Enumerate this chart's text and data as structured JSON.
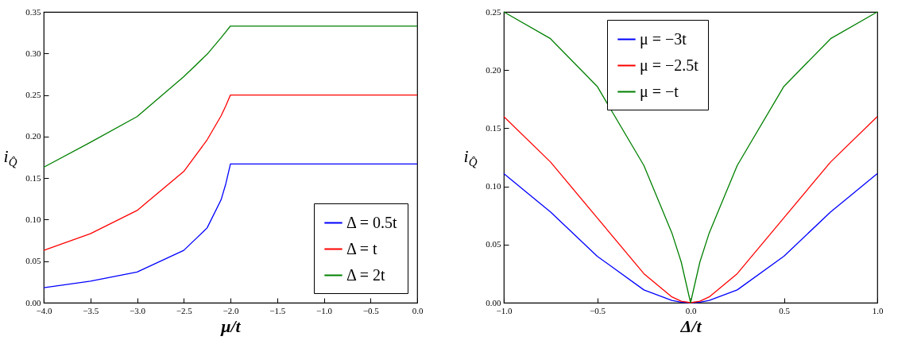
{
  "chart_data": [
    {
      "type": "line",
      "xlabel": "μ/t",
      "ylabel": "i$_{Q̂}$",
      "xlim": [
        -4,
        0
      ],
      "ylim": [
        0,
        0.35
      ],
      "xticks": [
        {
          "value": -4,
          "label": "−4.0"
        },
        {
          "value": -3.5,
          "label": "−3.5"
        },
        {
          "value": -3,
          "label": "−3.0"
        },
        {
          "value": -2.5,
          "label": "−2.5"
        },
        {
          "value": -2,
          "label": "−2.0"
        },
        {
          "value": -1.5,
          "label": "−1.5"
        },
        {
          "value": -1,
          "label": "−1.0"
        },
        {
          "value": -0.5,
          "label": "−0.5"
        },
        {
          "value": 0,
          "label": "0.0"
        }
      ],
      "yticks": [
        {
          "value": 0,
          "label": "0.00"
        },
        {
          "value": 0.05,
          "label": "0.05"
        },
        {
          "value": 0.1,
          "label": "0.10"
        },
        {
          "value": 0.15,
          "label": "0.15"
        },
        {
          "value": 0.2,
          "label": "0.20"
        },
        {
          "value": 0.25,
          "label": "0.25"
        },
        {
          "value": 0.3,
          "label": "0.30"
        },
        {
          "value": 0.35,
          "label": "0.35"
        }
      ],
      "x": [
        -4,
        -3.5,
        -3,
        -2.5,
        -2.25,
        -2.1,
        -2.05,
        -2,
        -1,
        0
      ],
      "series": [
        {
          "name": "Δ = 0.5t",
          "color": "#0000ff",
          "values": [
            0.018,
            0.026,
            0.037,
            0.063,
            0.09,
            0.124,
            0.143,
            0.167,
            0.167,
            0.167
          ]
        },
        {
          "name": "Δ = t",
          "color": "#ff0000",
          "values": [
            0.063,
            0.083,
            0.111,
            0.158,
            0.196,
            0.225,
            0.237,
            0.25,
            0.25,
            0.25
          ]
        },
        {
          "name": "Δ = 2t",
          "color": "#008000",
          "values": [
            0.163,
            0.193,
            0.224,
            0.272,
            0.299,
            0.319,
            0.326,
            0.333,
            0.333,
            0.333
          ]
        }
      ],
      "legend": "bottom right",
      "grid": false,
      "marker": "none",
      "line_style": "solid"
    },
    {
      "type": "line",
      "xlabel": "Δ/t",
      "ylabel": "i$_{Q̂}$",
      "xlim": [
        -1,
        1
      ],
      "ylim": [
        0,
        0.25
      ],
      "xticks": [
        {
          "value": -1,
          "label": "−1.0"
        },
        {
          "value": -0.5,
          "label": "−0.5"
        },
        {
          "value": 0,
          "label": "0.0"
        },
        {
          "value": 0.5,
          "label": "0.5"
        },
        {
          "value": 1,
          "label": "1.0"
        }
      ],
      "yticks": [
        {
          "value": 0,
          "label": "0.00"
        },
        {
          "value": 0.05,
          "label": "0.05"
        },
        {
          "value": 0.1,
          "label": "0.10"
        },
        {
          "value": 0.15,
          "label": "0.15"
        },
        {
          "value": 0.2,
          "label": "0.20"
        },
        {
          "value": 0.25,
          "label": "0.25"
        }
      ],
      "x": [
        -1,
        -0.75,
        -0.5,
        -0.25,
        -0.1,
        -0.05,
        0,
        0.05,
        0.1,
        0.25,
        0.5,
        0.75,
        1
      ],
      "series": [
        {
          "name": "μ = −3t",
          "color": "#0000ff",
          "values": [
            0.111,
            0.078,
            0.04,
            0.011,
            0.002,
            0.0005,
            0,
            0.0005,
            0.002,
            0.011,
            0.04,
            0.078,
            0.111
          ]
        },
        {
          "name": "μ = −2.5t",
          "color": "#ff0000",
          "values": [
            0.16,
            0.121,
            0.073,
            0.025,
            0.005,
            0.0013,
            0,
            0.0013,
            0.005,
            0.025,
            0.073,
            0.121,
            0.16
          ]
        },
        {
          "name": "μ = −t",
          "color": "#008000",
          "values": [
            0.25,
            0.227,
            0.186,
            0.118,
            0.06,
            0.035,
            0,
            0.035,
            0.06,
            0.118,
            0.186,
            0.227,
            0.25
          ]
        }
      ],
      "legend": "top",
      "grid": false,
      "marker": "none",
      "line_style": "solid"
    }
  ]
}
